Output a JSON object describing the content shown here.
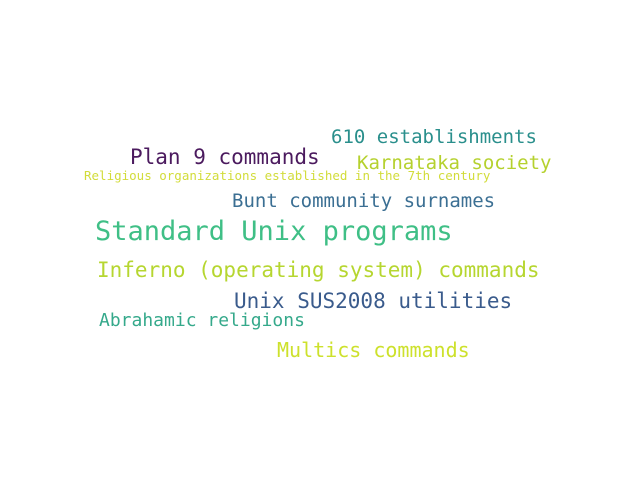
{
  "words": [
    {
      "text": "610 establishments",
      "color": "#2a8f8c"
    },
    {
      "text": "Plan 9 commands",
      "color": "#4b1a5e"
    },
    {
      "text": "Karnataka society",
      "color": "#b5d12e"
    },
    {
      "text": "Religious organizations established in the 7th century",
      "color": "#d2dc3a"
    },
    {
      "text": "Bunt community surnames",
      "color": "#3b6f93"
    },
    {
      "text": "Standard Unix programs",
      "color": "#3fbf86"
    },
    {
      "text": "Inferno (operating system) commands",
      "color": "#b6d630"
    },
    {
      "text": "Unix SUS2008 utilities",
      "color": "#3a5b8c"
    },
    {
      "text": "Abrahamic religions",
      "color": "#35a98b"
    },
    {
      "text": "Multics commands",
      "color": "#cde12c"
    }
  ]
}
